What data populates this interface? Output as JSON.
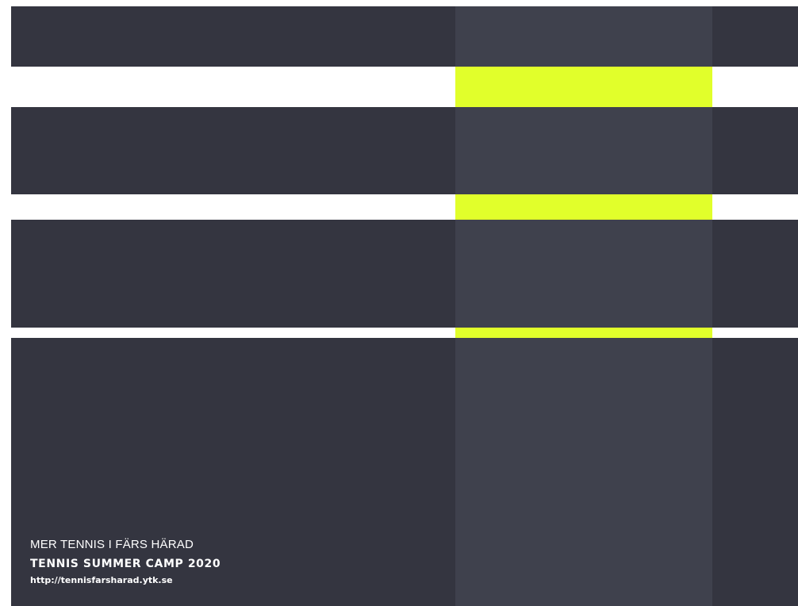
{
  "colors": {
    "dark": "#343540",
    "dark_mid": "#3f414d",
    "accent": "#e1ff2b",
    "background": "#ffffff",
    "text": "#ffffff"
  },
  "caption": {
    "subtitle": "MER TENNIS I FÄRS HÄRAD",
    "title": "TENNIS SUMMER CAMP 2020",
    "url": "http://tennisfarsharad.ytk.se"
  }
}
